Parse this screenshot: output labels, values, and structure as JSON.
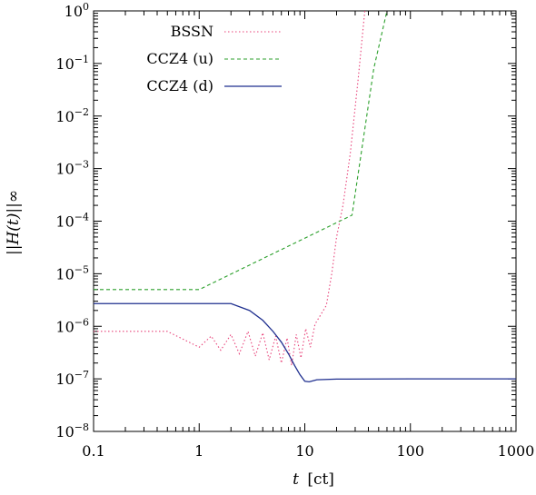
{
  "chart_data": {
    "type": "line",
    "xscale": "log",
    "yscale": "log",
    "xlim": [
      0.1,
      1000
    ],
    "ylim": [
      1e-08,
      1
    ],
    "xlabel_var": "t",
    "xlabel_unit": "[ct]",
    "ylabel": "||H(t)||∞",
    "x_ticks": [
      {
        "value": 0.1,
        "label": "0.1"
      },
      {
        "value": 1,
        "label": "1"
      },
      {
        "value": 10,
        "label": "10"
      },
      {
        "value": 100,
        "label": "100"
      },
      {
        "value": 1000,
        "label": "1000"
      }
    ],
    "y_ticks": [
      {
        "value": 1e-08,
        "base": "10",
        "exp": "−8"
      },
      {
        "value": 1e-07,
        "base": "10",
        "exp": "−7"
      },
      {
        "value": 1e-06,
        "base": "10",
        "exp": "−6"
      },
      {
        "value": 1e-05,
        "base": "10",
        "exp": "−5"
      },
      {
        "value": 0.0001,
        "base": "10",
        "exp": "−4"
      },
      {
        "value": 0.001,
        "base": "10",
        "exp": "−3"
      },
      {
        "value": 0.01,
        "base": "10",
        "exp": "−2"
      },
      {
        "value": 0.1,
        "base": "10",
        "exp": "−1"
      },
      {
        "value": 1,
        "base": "10",
        "exp": "0"
      }
    ],
    "legend_position": "top-left",
    "series": [
      {
        "name": "BSSN",
        "color": "#e8437a",
        "style": "dotted",
        "points": [
          [
            0.1,
            8e-07
          ],
          [
            0.5,
            8e-07
          ],
          [
            1.0,
            4e-07
          ],
          [
            1.3,
            6.5e-07
          ],
          [
            1.6,
            3.5e-07
          ],
          [
            2.0,
            7e-07
          ],
          [
            2.4,
            3e-07
          ],
          [
            2.9,
            8e-07
          ],
          [
            3.4,
            2.7e-07
          ],
          [
            4.0,
            7.5e-07
          ],
          [
            4.6,
            2.3e-07
          ],
          [
            5.3,
            6.5e-07
          ],
          [
            6.0,
            2e-07
          ],
          [
            6.8,
            6e-07
          ],
          [
            7.5,
            1.8e-07
          ],
          [
            8.3,
            7e-07
          ],
          [
            9.2,
            2.5e-07
          ],
          [
            10.2,
            9e-07
          ],
          [
            11.3,
            4e-07
          ],
          [
            12.5,
            1.1e-06
          ],
          [
            14.0,
            1.6e-06
          ],
          [
            16.0,
            2.5e-06
          ],
          [
            18.0,
            1e-05
          ],
          [
            20.0,
            5e-05
          ],
          [
            23.0,
            0.0002
          ],
          [
            27.0,
            0.002
          ],
          [
            32.0,
            0.05
          ],
          [
            37.0,
            1
          ]
        ]
      },
      {
        "name": "CCZ4 (u)",
        "color": "#2ca02c",
        "style": "dashed",
        "points": [
          [
            0.1,
            5e-06
          ],
          [
            1.0,
            5e-06
          ],
          [
            28.0,
            0.00013
          ],
          [
            45.0,
            0.08
          ],
          [
            60.0,
            1
          ]
        ]
      },
      {
        "name": "CCZ4 (d)",
        "color": "#1f2f8f",
        "style": "solid",
        "points": [
          [
            0.1,
            2.7e-06
          ],
          [
            2.0,
            2.7e-06
          ],
          [
            3.0,
            2e-06
          ],
          [
            4.0,
            1.3e-06
          ],
          [
            5.0,
            8e-07
          ],
          [
            6.0,
            5e-07
          ],
          [
            7.0,
            3e-07
          ],
          [
            8.0,
            1.8e-07
          ],
          [
            9.0,
            1.2e-07
          ],
          [
            10.0,
            9e-08
          ],
          [
            11.0,
            8.8e-08
          ],
          [
            13.0,
            9.6e-08
          ],
          [
            20.0,
            9.9e-08
          ],
          [
            100.0,
            1e-07
          ],
          [
            1000.0,
            1e-07
          ]
        ]
      }
    ]
  }
}
